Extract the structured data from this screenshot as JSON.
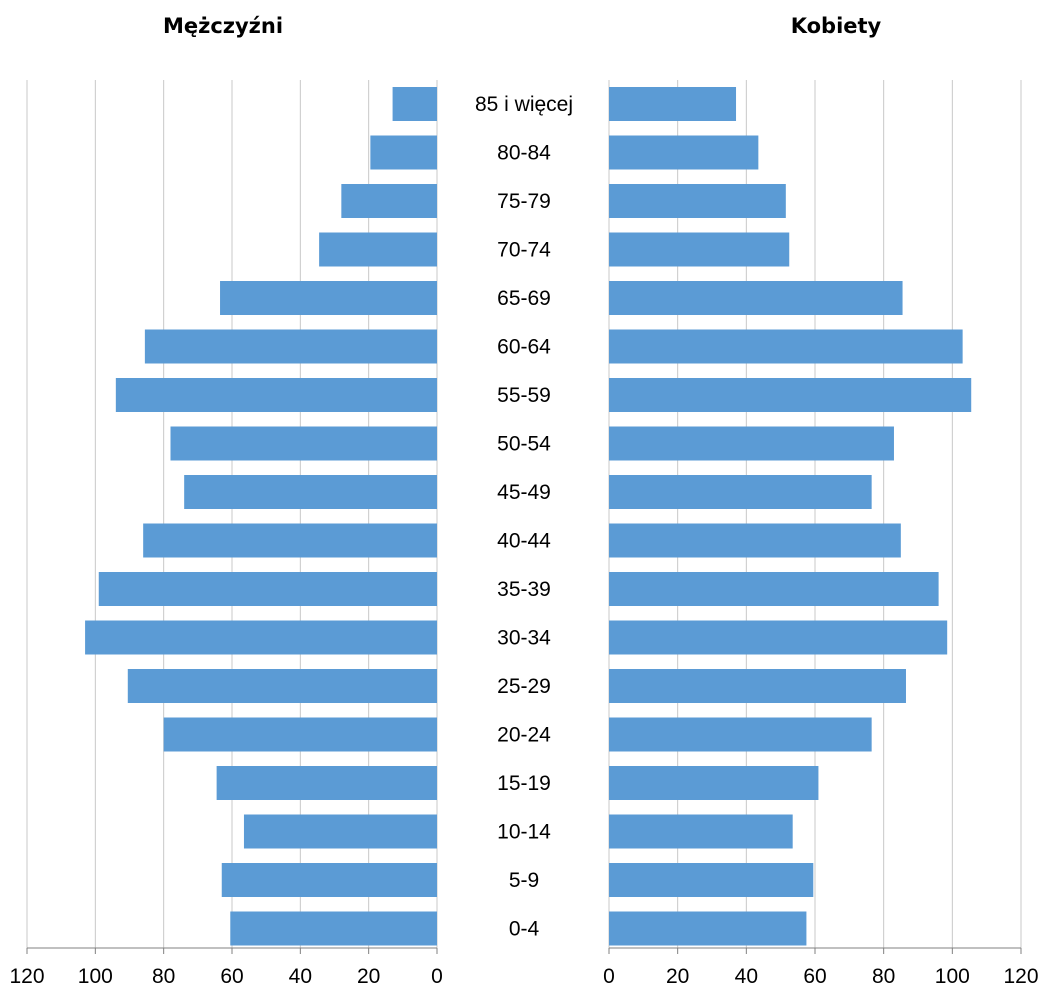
{
  "chart_data": [
    {
      "type": "bar",
      "orientation": "horizontal",
      "title": "Mężczyźni",
      "x_direction": "reversed",
      "xlim": [
        0,
        120
      ],
      "xticks": [
        "120",
        "100",
        "80",
        "60",
        "40",
        "20",
        "0"
      ],
      "grid": true,
      "color": "#5B9BD5",
      "categories": [
        "85 i więcej",
        "80-84",
        "75-79",
        "70-74",
        "65-69",
        "60-64",
        "55-59",
        "50-54",
        "45-49",
        "40-44",
        "35-39",
        "30-34",
        "25-29",
        "20-24",
        "15-19",
        "10-14",
        "5-9",
        "0-4"
      ],
      "values": [
        13,
        19.5,
        28,
        34.5,
        63.5,
        85.5,
        94,
        78,
        74,
        86,
        99,
        103,
        90.5,
        80,
        64.5,
        56.5,
        63,
        60.5
      ]
    },
    {
      "type": "bar",
      "orientation": "horizontal",
      "title": "Kobiety",
      "xlim": [
        0,
        120
      ],
      "xticks": [
        "0",
        "20",
        "40",
        "60",
        "80",
        "100",
        "120"
      ],
      "grid": true,
      "color": "#5B9BD5",
      "categories": [
        "85 i więcej",
        "80-84",
        "75-79",
        "70-74",
        "65-69",
        "60-64",
        "55-59",
        "50-54",
        "45-49",
        "40-44",
        "35-39",
        "30-34",
        "25-29",
        "20-24",
        "15-19",
        "10-14",
        "5-9",
        "0-4"
      ],
      "values": [
        37,
        43.5,
        51.5,
        52.5,
        85.5,
        103,
        105.5,
        83,
        76.5,
        85,
        96,
        98.5,
        86.5,
        76.5,
        61,
        53.5,
        59.5,
        57.5
      ]
    }
  ]
}
